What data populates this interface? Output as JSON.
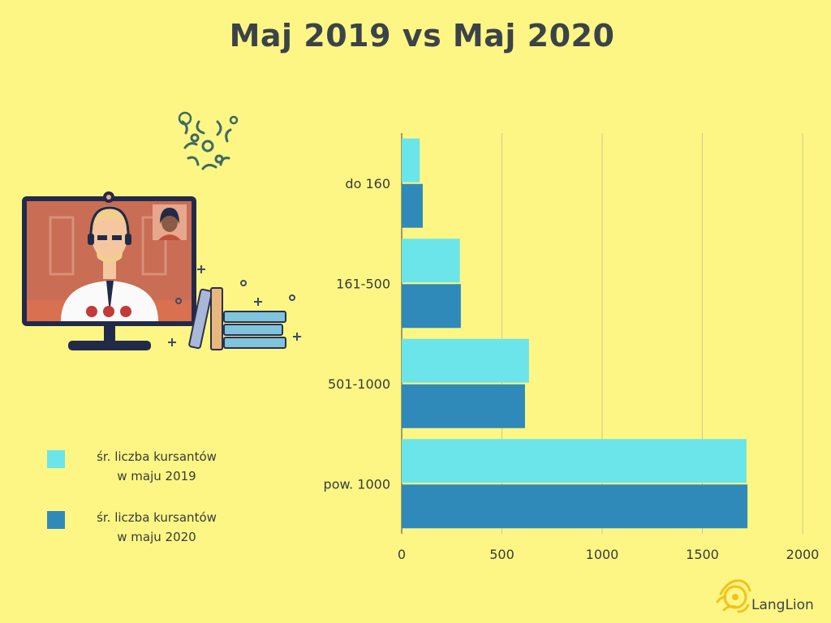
{
  "title": "Maj 2019 vs Maj 2020",
  "colors": {
    "background": "#fdf684",
    "series2019": "#6be5e9",
    "series2020": "#2f8ab9",
    "title": "#3b4349"
  },
  "legend": [
    {
      "line1": "śr. liczba kursantów",
      "line2": "w maju 2019",
      "color": "#6be5e9"
    },
    {
      "line1": "śr. liczba kursantów",
      "line2": "w maju 2020",
      "color": "#2f8ab9"
    }
  ],
  "brand": "LangLion",
  "chart_data": {
    "type": "bar",
    "orientation": "horizontal",
    "categories": [
      "do 160",
      "161-500",
      "501-1000",
      "pow. 1000"
    ],
    "series": [
      {
        "name": "śr. liczba kursantów w maju 2019",
        "values": [
          90,
          290,
          635,
          1720
        ]
      },
      {
        "name": "śr. liczba kursantów w maju 2020",
        "values": [
          105,
          295,
          615,
          1725
        ]
      }
    ],
    "xlim": [
      0,
      2000
    ],
    "xticks": [
      "0",
      "500",
      "1000",
      "1500",
      "2000"
    ],
    "grid": true,
    "legend_position": "left"
  }
}
